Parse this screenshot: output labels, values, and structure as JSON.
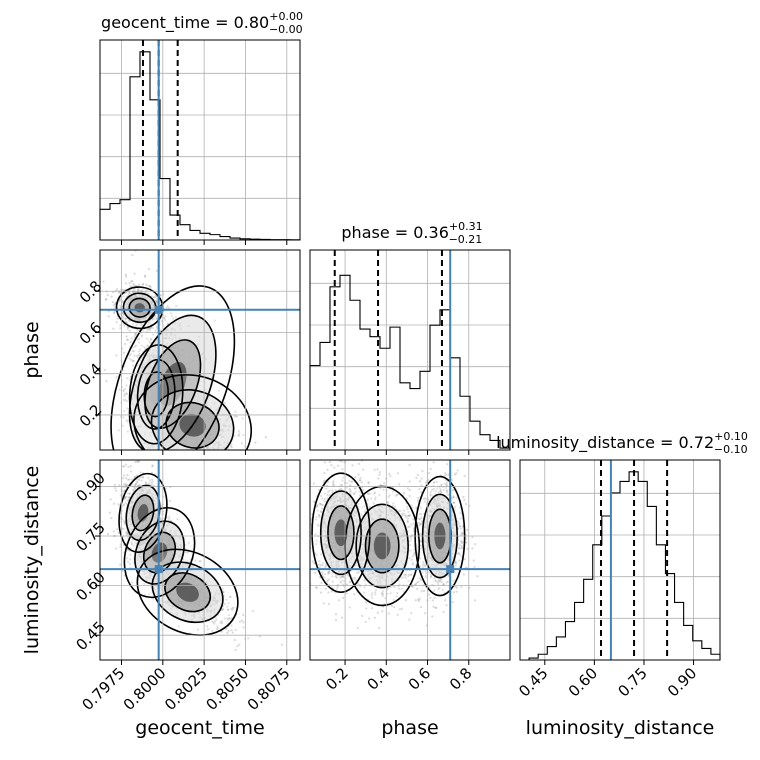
{
  "chart_data": {
    "type": "corner",
    "truth_color": "#4682b4",
    "parameters": [
      {
        "key": "geocent_time",
        "label": "geocent_time",
        "range": [
          0.7962,
          0.8083
        ],
        "ticks": [
          0.7975,
          0.8,
          0.8025,
          0.805,
          0.8075
        ],
        "tick_labels": [
          "0.7975",
          "0.8000",
          "0.8025",
          "0.8050",
          "0.8075"
        ],
        "truth": 0.79975,
        "quantiles": [
          0.7988,
          0.79975,
          0.8009
        ],
        "title": {
          "prefix": "geocent_time = 0.80",
          "plus": "+0.00",
          "minus": "−0.00"
        },
        "hist": [
          0.16,
          0.19,
          0.21,
          0.85,
          0.98,
          0.73,
          0.32,
          0.13,
          0.08,
          0.05,
          0.035,
          0.028,
          0.018,
          0.01,
          0.006,
          0.004,
          0.003,
          0.002,
          0.002,
          0.001
        ]
      },
      {
        "key": "phase",
        "label": "phase",
        "range": [
          0.03,
          1.0
        ],
        "ticks": [
          0.2,
          0.4,
          0.6,
          0.8
        ],
        "tick_labels": [
          "0.2",
          "0.4",
          "0.6",
          "0.8"
        ],
        "truth": 0.71,
        "quantiles": [
          0.15,
          0.36,
          0.67
        ],
        "title": {
          "prefix": "phase = 0.36",
          "plus": "+0.31",
          "minus": "−0.21"
        },
        "hist": [
          0.44,
          0.56,
          0.85,
          0.91,
          0.78,
          0.63,
          0.59,
          0.53,
          0.64,
          0.35,
          0.32,
          0.41,
          0.65,
          0.73,
          0.48,
          0.28,
          0.15,
          0.08,
          0.05,
          0.01
        ]
      },
      {
        "key": "luminosity_distance",
        "label": "luminosity_distance",
        "range": [
          0.375,
          0.98
        ],
        "ticks": [
          0.45,
          0.6,
          0.75,
          0.9
        ],
        "tick_labels": [
          "0.45",
          "0.60",
          "0.75",
          "0.90"
        ],
        "truth": 0.65,
        "quantiles": [
          0.62,
          0.72,
          0.82
        ],
        "title": {
          "prefix": "luminosity_distance = 0.72",
          "plus": "+0.10",
          "minus": "−0.10"
        },
        "hist": [
          0.0,
          0.01,
          0.03,
          0.07,
          0.12,
          0.2,
          0.3,
          0.42,
          0.6,
          0.75,
          0.87,
          0.93,
          0.98,
          0.93,
          0.8,
          0.6,
          0.45,
          0.3,
          0.18,
          0.1,
          0.06,
          0.03
        ]
      }
    ],
    "joint": [
      {
        "x": "geocent_time",
        "y": "phase",
        "modes": [
          [
            0.7985,
            0.72
          ],
          [
            0.7996,
            0.35
          ],
          [
            0.7994,
            0.2
          ]
        ]
      },
      {
        "x": "geocent_time",
        "y": "luminosity_distance",
        "modes": [
          [
            0.7987,
            0.82
          ],
          [
            0.7997,
            0.71
          ]
        ]
      },
      {
        "x": "phase",
        "y": "luminosity_distance",
        "modes": [
          [
            0.17,
            0.78
          ],
          [
            0.36,
            0.72
          ],
          [
            0.66,
            0.76
          ]
        ]
      }
    ]
  }
}
